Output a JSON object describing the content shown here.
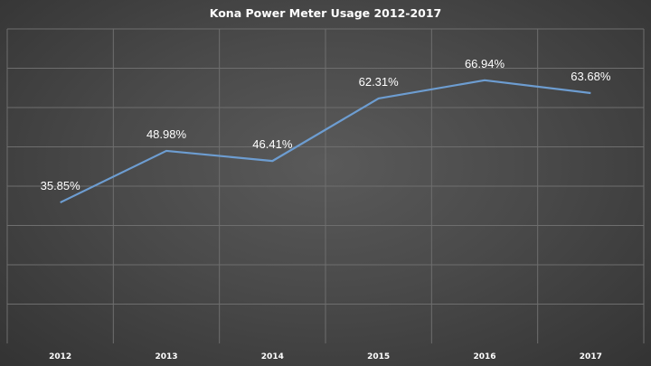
{
  "chart_data": {
    "type": "line",
    "title": "Kona Power Meter Usage 2012-2017",
    "categories": [
      "2012",
      "2013",
      "2014",
      "2015",
      "2016",
      "2017"
    ],
    "series": [
      {
        "values": [
          35.85,
          48.98,
          46.41,
          62.31,
          66.94,
          63.68
        ],
        "labels": [
          "35.85%",
          "48.98%",
          "46.41%",
          "62.31%",
          "66.94%",
          "63.68%"
        ]
      }
    ],
    "ylim": [
      0,
      80
    ],
    "grid": true,
    "legend": "none",
    "colors": {
      "line": "#6d9dd1",
      "grid": "#6e6e6e",
      "text": "#ffffff"
    }
  }
}
